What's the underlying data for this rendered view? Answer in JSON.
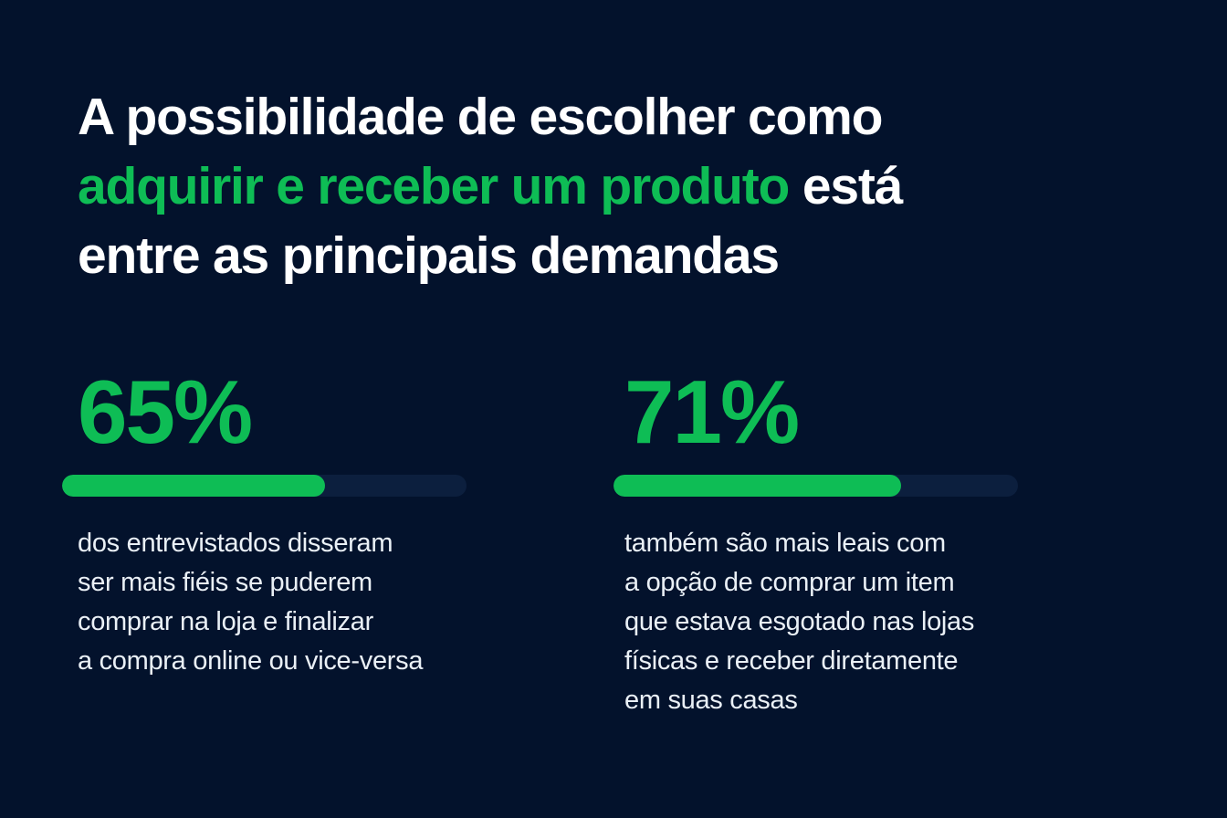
{
  "page": {
    "background_color": "#03122C",
    "accent_green": "#0EBD55",
    "track_color": "#0C1F3E",
    "headline_color": "#FFFFFF",
    "body_text_color": "#EAF0F6"
  },
  "headline": {
    "line1": "A possibilidade de escolher como",
    "line2_highlight": "adquirir e receber um produto",
    "line2_rest": " está",
    "line3": "entre as principais demandas"
  },
  "stats": [
    {
      "value_label": "65%",
      "value": 65,
      "description": "dos entrevistados disseram\nser mais fiéis se puderem\ncomprar na loja e finalizar\na compra online ou vice-versa"
    },
    {
      "value_label": "71%",
      "value": 71,
      "description": "também são mais leais com\na opção de comprar um item\nque estava esgotado nas lojas\nfísicas e receber diretamente\nem suas casas"
    }
  ],
  "chart_data": {
    "type": "bar",
    "orientation": "horizontal",
    "unit": "%",
    "title": "A possibilidade de escolher como adquirir e receber um produto está entre as principais demandas",
    "categories": [
      "dos entrevistados disseram ser mais fiéis se puderem comprar na loja e finalizar a compra online ou vice-versa",
      "também são mais leais com a opção de comprar um item que estava esgotado nas lojas físicas e receber diretamente em suas casas"
    ],
    "values": [
      65,
      71
    ],
    "xlim": [
      0,
      100
    ],
    "grid": false,
    "legend": false,
    "bar_color": "#0EBD55",
    "track_color": "#0C1F3E"
  }
}
